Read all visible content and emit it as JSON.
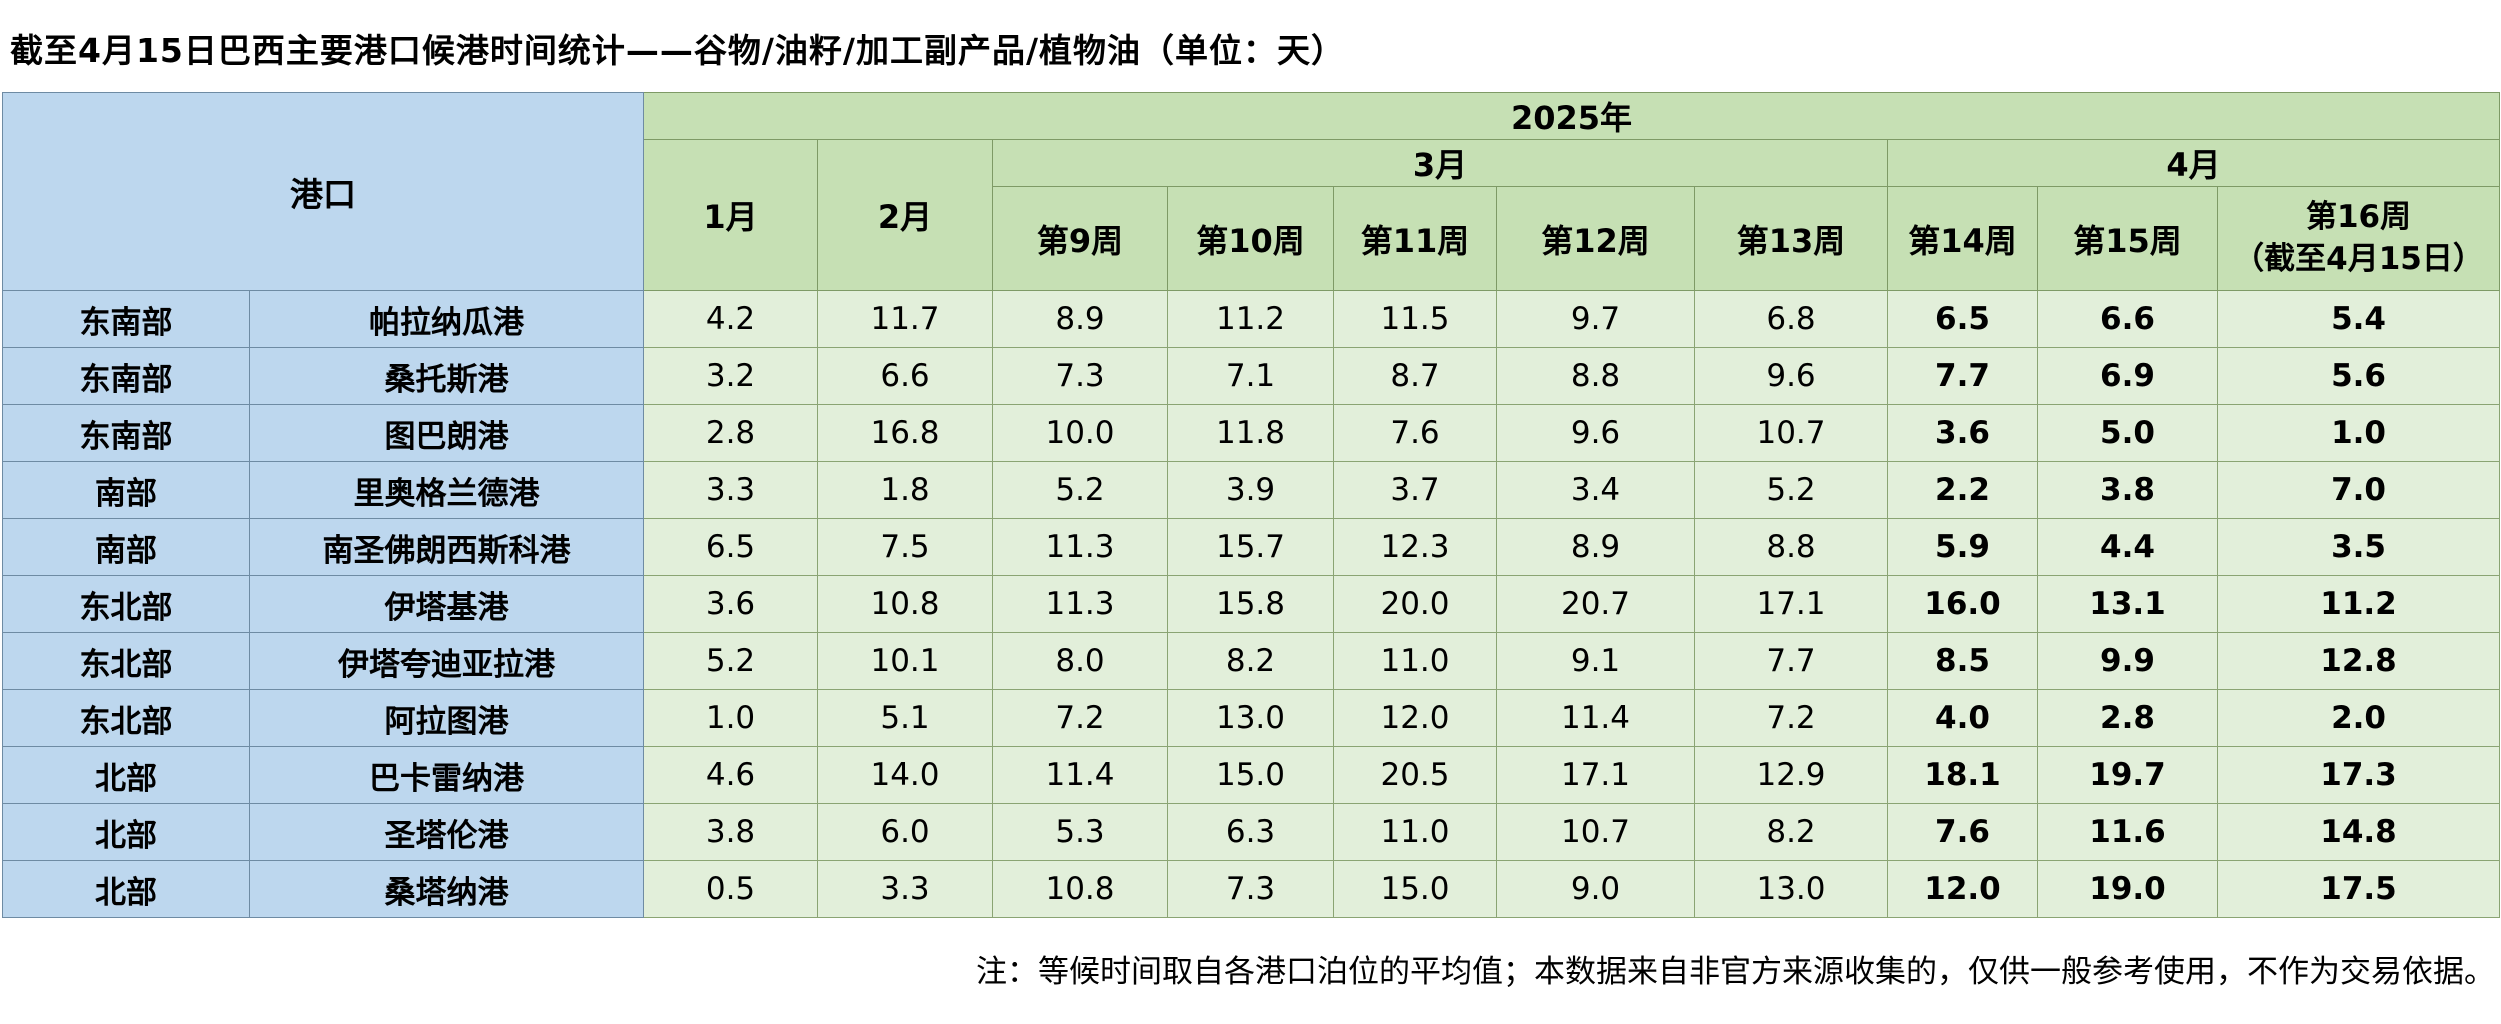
{
  "title": "截至4月15日巴西主要港口候港时间统计——谷物/油籽/加工副产品/植物油（单位：天）",
  "footnote": "注：等候时间取自各港口泊位的平均值；本数据来自非官方来源收集的，仅供一般参考使用，不作为交易依据。",
  "colors": {
    "header_blue": "#BDD7EE",
    "header_green": "#C6E0B4",
    "data_green": "#E2EFDA"
  },
  "chart_data": {
    "type": "table",
    "title": "截至4月15日巴西主要港口候港时间统计——谷物/油籽/加工副产品/植物油（单位：天）",
    "header": {
      "port": "港口",
      "year": "2025年",
      "jan": "1月",
      "feb": "2月",
      "mar": "3月",
      "apr": "4月",
      "weeks": [
        "第9周",
        "第10周",
        "第11周",
        "第12周",
        "第13周",
        "第14周",
        "第15周",
        "第16周\n（截至4月15日）"
      ]
    },
    "value_columns": [
      "1月",
      "2月",
      "第9周",
      "第10周",
      "第11周",
      "第12周",
      "第13周",
      "第14周",
      "第15周",
      "第16周（截至4月15日）"
    ],
    "bold_from": 7,
    "rows": [
      {
        "region": "东南部",
        "port": "帕拉纳瓜港",
        "values": [
          4.2,
          11.7,
          8.9,
          11.2,
          11.5,
          9.7,
          6.8,
          6.5,
          6.6,
          5.4
        ]
      },
      {
        "region": "东南部",
        "port": "桑托斯港",
        "values": [
          3.2,
          6.6,
          7.3,
          7.1,
          8.7,
          8.8,
          9.6,
          7.7,
          6.9,
          5.6
        ]
      },
      {
        "region": "东南部",
        "port": "图巴朗港",
        "values": [
          2.8,
          16.8,
          10.0,
          11.8,
          7.6,
          9.6,
          10.7,
          3.6,
          5.0,
          1.0
        ]
      },
      {
        "region": "南部",
        "port": "里奥格兰德港",
        "values": [
          3.3,
          1.8,
          5.2,
          3.9,
          3.7,
          3.4,
          5.2,
          2.2,
          3.8,
          7.0
        ]
      },
      {
        "region": "南部",
        "port": "南圣佛朗西斯科港",
        "values": [
          6.5,
          7.5,
          11.3,
          15.7,
          12.3,
          8.9,
          8.8,
          5.9,
          4.4,
          3.5
        ]
      },
      {
        "region": "东北部",
        "port": "伊塔基港",
        "values": [
          3.6,
          10.8,
          11.3,
          15.8,
          20.0,
          20.7,
          17.1,
          16.0,
          13.1,
          11.2
        ]
      },
      {
        "region": "东北部",
        "port": "伊塔夸迪亚拉港",
        "values": [
          5.2,
          10.1,
          8.0,
          8.2,
          11.0,
          9.1,
          7.7,
          8.5,
          9.9,
          12.8
        ]
      },
      {
        "region": "东北部",
        "port": "阿拉图港",
        "values": [
          1.0,
          5.1,
          7.2,
          13.0,
          12.0,
          11.4,
          7.2,
          4.0,
          2.8,
          2.0
        ]
      },
      {
        "region": "北部",
        "port": "巴卡雷纳港",
        "values": [
          4.6,
          14.0,
          11.4,
          15.0,
          20.5,
          17.1,
          12.9,
          18.1,
          19.7,
          17.3
        ]
      },
      {
        "region": "北部",
        "port": "圣塔伦港",
        "values": [
          3.8,
          6.0,
          5.3,
          6.3,
          11.0,
          10.7,
          8.2,
          7.6,
          11.6,
          14.8
        ]
      },
      {
        "region": "北部",
        "port": "桑塔纳港",
        "values": [
          0.5,
          3.3,
          10.8,
          7.3,
          15.0,
          9.0,
          13.0,
          12.0,
          19.0,
          17.5
        ]
      }
    ]
  }
}
